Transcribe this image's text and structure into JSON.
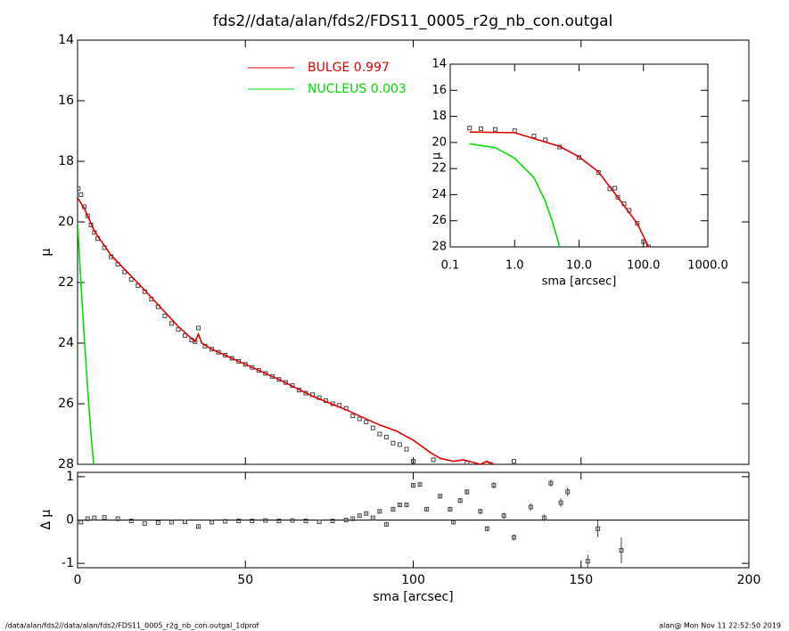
{
  "title": "fds2//data/alan/fds2/FDS11_0005_r2g_nb_con.outgal",
  "footer": {
    "left": "/data/alan/fds2//data/alan/fds2/FDS11_0005_r2g_nb_con.outgal_1dprof",
    "right": "alan@  Mon Nov 11 22:52:50 2019"
  },
  "chart_data": [
    {
      "type": "line",
      "ylabel": "μ",
      "xlim": [
        0,
        200
      ],
      "ylim": [
        14,
        28
      ],
      "y_inverted": true,
      "yticks": [
        14,
        16,
        18,
        20,
        22,
        24,
        26,
        28
      ],
      "series": [
        {
          "mode": "markers",
          "color": "#444444",
          "x": [
            0.2,
            1,
            2,
            3,
            4,
            5,
            6,
            8,
            10,
            12,
            14,
            16,
            18,
            20,
            22,
            24,
            26,
            28,
            30,
            32,
            34,
            35,
            36,
            38,
            40,
            42,
            44,
            46,
            48,
            50,
            52,
            54,
            56,
            58,
            60,
            62,
            64,
            66,
            68,
            70,
            72,
            74,
            76,
            78,
            80,
            82,
            84,
            86,
            88,
            90,
            92,
            94,
            96,
            98,
            100,
            106,
            116,
            123,
            130
          ],
          "values": [
            18.9,
            19.1,
            19.5,
            19.8,
            20.1,
            20.35,
            20.55,
            20.85,
            21.15,
            21.4,
            21.65,
            21.9,
            22.1,
            22.3,
            22.55,
            22.8,
            23.1,
            23.35,
            23.55,
            23.75,
            23.9,
            23.95,
            23.5,
            24.1,
            24.2,
            24.3,
            24.4,
            24.5,
            24.6,
            24.7,
            24.8,
            24.9,
            25.0,
            25.1,
            25.2,
            25.3,
            25.4,
            25.55,
            25.65,
            25.7,
            25.8,
            25.9,
            26.0,
            26.05,
            26.15,
            26.4,
            26.5,
            26.6,
            26.8,
            27.0,
            27.1,
            27.3,
            27.35,
            27.5,
            27.9,
            27.85,
            27.95,
            28.0,
            27.9
          ]
        },
        {
          "mode": "line",
          "name": "BULGE  0.997",
          "color": "#e00000",
          "x": [
            0,
            2,
            5,
            10,
            20,
            30,
            35,
            36,
            37,
            40,
            50,
            60,
            70,
            80,
            90,
            95,
            100,
            105,
            108,
            112,
            115,
            120,
            122,
            124
          ],
          "values": [
            19.2,
            19.55,
            20.3,
            21.1,
            22.25,
            23.45,
            23.95,
            23.7,
            24.0,
            24.2,
            24.7,
            25.2,
            25.75,
            26.2,
            26.7,
            26.9,
            27.2,
            27.6,
            27.8,
            27.9,
            27.85,
            28.0,
            27.9,
            28.0
          ]
        },
        {
          "mode": "line",
          "name": "NUCLEUS  0.003",
          "color": "#00dd00",
          "x": [
            0,
            1,
            2,
            3,
            4,
            4.8
          ],
          "values": [
            20.0,
            22.0,
            23.8,
            25.5,
            27.0,
            28.0
          ]
        }
      ]
    },
    {
      "type": "scatter",
      "xlabel": "sma [arcsec]",
      "ylabel": "Δ μ",
      "xlim": [
        0,
        200
      ],
      "ylim": [
        -1.1,
        1.1
      ],
      "xticks": [
        0,
        50,
        100,
        150,
        200
      ],
      "yticks": [
        -1,
        0,
        1
      ],
      "series": [
        {
          "mode": "markers",
          "color": "#444444",
          "x": [
            1,
            3,
            5,
            8,
            12,
            16,
            20,
            24,
            28,
            32,
            36,
            40,
            44,
            48,
            52,
            56,
            60,
            64,
            68,
            72,
            76,
            80,
            82,
            84,
            86,
            88,
            90,
            92,
            94,
            96,
            98,
            100,
            102,
            104,
            108,
            111,
            112,
            114,
            116,
            120,
            122,
            124,
            127,
            130,
            135,
            139,
            141,
            144,
            146,
            152,
            155,
            162
          ],
          "values": [
            -0.05,
            0.03,
            0.05,
            0.06,
            0.03,
            -0.02,
            -0.08,
            -0.06,
            -0.05,
            -0.04,
            -0.15,
            -0.05,
            -0.03,
            -0.02,
            -0.02,
            -0.01,
            -0.02,
            -0.01,
            -0.02,
            -0.04,
            -0.02,
            0.0,
            0.03,
            0.1,
            0.15,
            0.05,
            0.2,
            -0.1,
            0.25,
            0.35,
            0.35,
            0.8,
            0.82,
            0.25,
            0.55,
            0.25,
            -0.05,
            0.45,
            0.65,
            0.2,
            -0.2,
            0.8,
            0.1,
            -0.4,
            0.3,
            0.05,
            0.85,
            0.4,
            0.65,
            -0.95,
            -0.2,
            -0.7
          ],
          "errors": [
            0.01,
            0.01,
            0.01,
            0.01,
            0.01,
            0.01,
            0.01,
            0.01,
            0.01,
            0.01,
            0.02,
            0.01,
            0.01,
            0.01,
            0.01,
            0.01,
            0.01,
            0.01,
            0.01,
            0.01,
            0.02,
            0.02,
            0.02,
            0.02,
            0.02,
            0.02,
            0.03,
            0.03,
            0.03,
            0.03,
            0.03,
            0.04,
            0.04,
            0.04,
            0.05,
            0.05,
            0.05,
            0.06,
            0.06,
            0.06,
            0.06,
            0.07,
            0.07,
            0.07,
            0.08,
            0.08,
            0.08,
            0.1,
            0.1,
            0.15,
            0.2,
            0.3
          ]
        }
      ]
    },
    {
      "type": "line",
      "xlabel": "sma [arcsec]",
      "ylabel": "μ",
      "log_x": true,
      "xlim": [
        0.1,
        1000
      ],
      "ylim": [
        14,
        28
      ],
      "y_inverted": true,
      "xticks": [
        0.1,
        {
          "value": 1,
          "label": "1.0"
        },
        {
          "value": 10,
          "label": "10.0"
        },
        {
          "value": 100,
          "label": "100.0"
        },
        {
          "value": 1000,
          "label": "1000.0"
        }
      ],
      "yticks": [
        14,
        16,
        18,
        20,
        22,
        24,
        26,
        28
      ],
      "series": [
        {
          "mode": "markers",
          "color": "#444444",
          "x": [
            0.2,
            0.3,
            0.5,
            1,
            2,
            3,
            5,
            10,
            20,
            30,
            36,
            40,
            50,
            60,
            80,
            100,
            120
          ],
          "values": [
            18.9,
            18.95,
            19.0,
            19.1,
            19.5,
            19.8,
            20.35,
            21.15,
            22.3,
            23.55,
            23.5,
            24.2,
            24.7,
            25.2,
            26.2,
            27.6,
            28.0
          ]
        },
        {
          "mode": "line",
          "color": "#e00000",
          "x": [
            0.2,
            1,
            5,
            10,
            20,
            40,
            80,
            120
          ],
          "values": [
            19.2,
            19.25,
            20.3,
            21.1,
            22.25,
            24.2,
            26.2,
            28.0
          ]
        },
        {
          "mode": "line",
          "color": "#00dd00",
          "x": [
            0.2,
            0.5,
            1,
            2,
            3,
            4,
            5
          ],
          "values": [
            20.1,
            20.4,
            21.2,
            22.7,
            24.5,
            26.3,
            28.0
          ]
        }
      ]
    }
  ]
}
